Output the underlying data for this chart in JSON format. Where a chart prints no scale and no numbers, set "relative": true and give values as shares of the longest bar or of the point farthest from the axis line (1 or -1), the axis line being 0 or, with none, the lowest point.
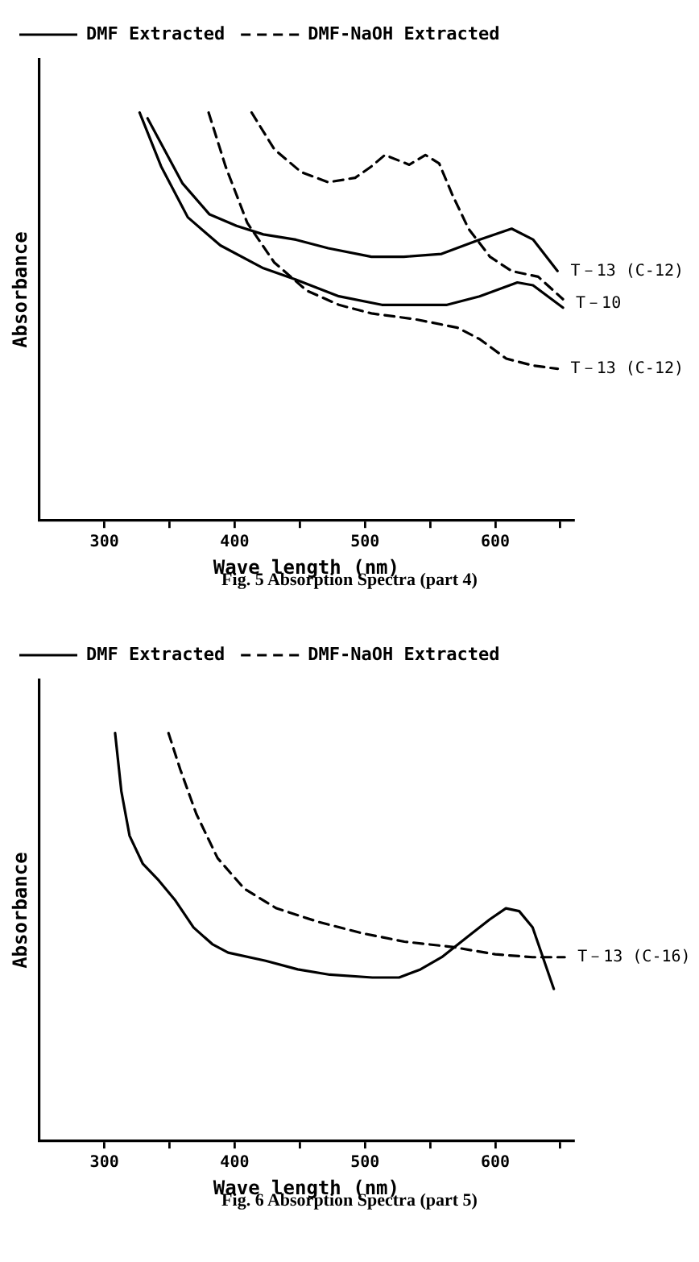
{
  "chart_data": [
    {
      "type": "line",
      "relative": true,
      "xlabel": "Wave length (nm)",
      "ylabel": "Absorbance",
      "xlim": [
        250,
        660
      ],
      "xticks": [
        300,
        {
          "value": 350,
          "label": null
        },
        400,
        {
          "value": 450,
          "label": null
        },
        500,
        {
          "value": 550,
          "label": null
        },
        600,
        {
          "value": 650,
          "label": null
        }
      ],
      "legend": "top",
      "grid": false,
      "marker": "none",
      "series": [
        {
          "name": "DMF Extracted",
          "color": "#000000",
          "line_style": "solid",
          "x": [
            333.1,
            360,
            380.7,
            401.4,
            422,
            447,
            471.8,
            505,
            529.8,
            558.8,
            587.8,
            612.6,
            629.2,
            647.8
          ],
          "values": [
            0.986,
            0.826,
            0.75,
            0.722,
            0.701,
            0.688,
            0.667,
            0.646,
            0.646,
            0.653,
            0.688,
            0.715,
            0.688,
            0.611
          ]
        },
        {
          "color": "#000000",
          "line_style": "solid",
          "x": [
            327,
            343.5,
            364,
            389,
            422,
            447,
            480,
            513,
            563,
            588,
            617,
            629,
            652
          ],
          "values": [
            1.0,
            0.868,
            0.743,
            0.674,
            0.618,
            0.59,
            0.549,
            0.528,
            0.528,
            0.549,
            0.583,
            0.576,
            0.521
          ]
        },
        {
          "name": "DMF-NaOH Extracted",
          "color": "#000000",
          "line_style": "dashed",
          "x": [
            380,
            393,
            409.7,
            430.4,
            455.3,
            480,
            505,
            538,
            571,
            588,
            608.5,
            629,
            648
          ],
          "values": [
            1.0,
            0.868,
            0.729,
            0.632,
            0.563,
            0.528,
            0.507,
            0.493,
            0.472,
            0.444,
            0.396,
            0.379,
            0.371
          ]
        },
        {
          "color": "#000000",
          "line_style": "dashed",
          "x": [
            413,
            430.4,
            451,
            471.8,
            492.5,
            505,
            515.3,
            534,
            546.4,
            557,
            567,
            579.5,
            596,
            612.6,
            633,
            652
          ],
          "values": [
            1.0,
            0.91,
            0.854,
            0.829,
            0.84,
            0.868,
            0.896,
            0.872,
            0.896,
            0.875,
            0.799,
            0.715,
            0.646,
            0.611,
            0.597,
            0.542
          ]
        }
      ],
      "annotations": [
        {
          "text": "T－13 (C-12)",
          "x": 648,
          "y": 0.611
        },
        {
          "text": "T－10",
          "x": 652,
          "y": 0.53
        },
        {
          "text": "T－13 (C-12)",
          "x": 648,
          "y": 0.371
        },
        "Fig. 5   Absorption Spectra (part 4)"
      ]
    },
    {
      "type": "line",
      "relative": true,
      "xlabel": "Wave length (nm)",
      "ylabel": "Absorbance",
      "xlim": [
        250,
        660
      ],
      "xticks": [
        300,
        {
          "value": 350,
          "label": null
        },
        400,
        {
          "value": 450,
          "label": null
        },
        500,
        {
          "value": 550,
          "label": null
        },
        600,
        {
          "value": 650,
          "label": null
        }
      ],
      "legend": "top",
      "grid": false,
      "marker": "none",
      "series": [
        {
          "name": "DMF Extracted",
          "color": "#000000",
          "line_style": "solid",
          "x": [
            308.2,
            313,
            319.3,
            329.5,
            341.8,
            354,
            368.4,
            382.8,
            395,
            423.8,
            448.4,
            473,
            505.7,
            526.2,
            542.6,
            559,
            579.5,
            595.9,
            608.2,
            618.4,
            628.7,
            636.9,
            645
          ],
          "values": [
            1.0,
            0.857,
            0.748,
            0.679,
            0.638,
            0.591,
            0.523,
            0.482,
            0.461,
            0.441,
            0.42,
            0.407,
            0.4,
            0.4,
            0.42,
            0.45,
            0.502,
            0.543,
            0.57,
            0.563,
            0.523,
            0.447,
            0.372
          ]
        },
        {
          "name": "DMF-NaOH Extracted",
          "color": "#000000",
          "line_style": "dashed",
          "x": [
            349.2,
            358.2,
            370.5,
            386.9,
            407.4,
            432,
            464.8,
            497.5,
            530.3,
            567.2,
            600,
            628.7,
            653.3
          ],
          "values": [
            1.0,
            0.911,
            0.802,
            0.693,
            0.618,
            0.57,
            0.536,
            0.509,
            0.488,
            0.475,
            0.457,
            0.45,
            0.45
          ]
        }
      ],
      "annotations": [
        {
          "text": "T－13 (C-16)",
          "x": 653.3,
          "y": 0.45
        },
        "Fig. 6   Absorption Spectra (part 5)"
      ]
    }
  ]
}
